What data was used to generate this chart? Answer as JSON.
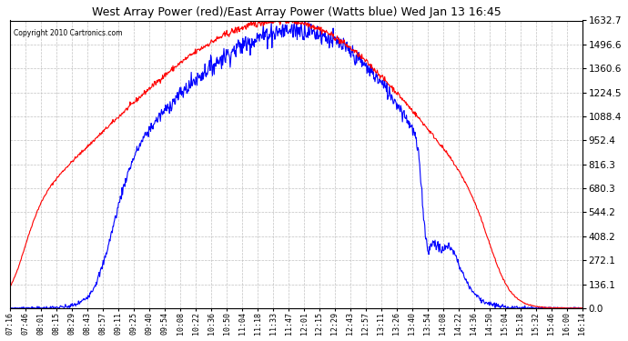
{
  "title": "West Array Power (red)/East Array Power (Watts blue) Wed Jan 13 16:45",
  "copyright": "Copyright 2010 Cartronics.com",
  "background_color": "#ffffff",
  "plot_bg_color": "#ffffff",
  "grid_color": "#bbbbbb",
  "yticks": [
    0.0,
    136.1,
    272.1,
    408.2,
    544.2,
    680.3,
    816.3,
    952.4,
    1088.4,
    1224.5,
    1360.6,
    1496.6,
    1632.7
  ],
  "ymax": 1632.7,
  "ymin": 0.0,
  "red_color": "#ff0000",
  "blue_color": "#0000ff",
  "x_labels": [
    "07:16",
    "07:46",
    "08:01",
    "08:15",
    "08:29",
    "08:43",
    "08:57",
    "09:11",
    "09:25",
    "09:40",
    "09:54",
    "10:08",
    "10:22",
    "10:36",
    "10:50",
    "11:04",
    "11:18",
    "11:33",
    "11:47",
    "12:01",
    "12:15",
    "12:29",
    "12:43",
    "12:57",
    "13:11",
    "13:26",
    "13:40",
    "13:54",
    "14:08",
    "14:22",
    "14:36",
    "14:50",
    "15:04",
    "15:18",
    "15:32",
    "15:46",
    "16:00",
    "16:14"
  ]
}
